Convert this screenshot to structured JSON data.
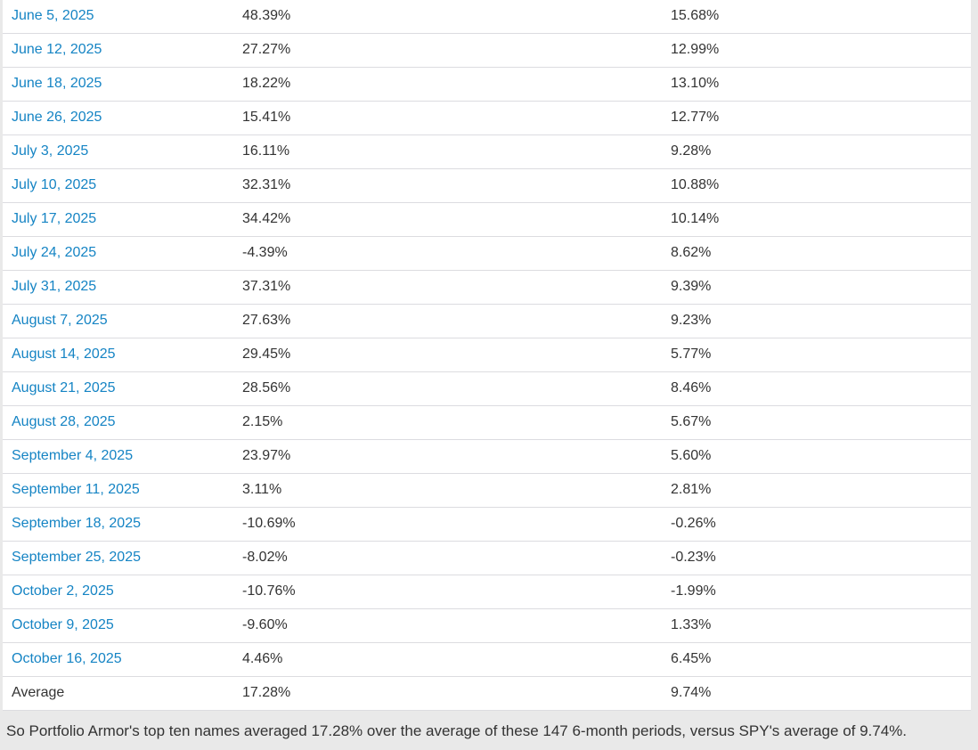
{
  "table": {
    "rows": [
      {
        "date": "June 5, 2025",
        "top_names": "48.39%",
        "spy": "15.68%"
      },
      {
        "date": "June 12, 2025",
        "top_names": "27.27%",
        "spy": "12.99%"
      },
      {
        "date": "June 18, 2025",
        "top_names": "18.22%",
        "spy": "13.10%"
      },
      {
        "date": "June 26, 2025",
        "top_names": "15.41%",
        "spy": "12.77%"
      },
      {
        "date": "July 3, 2025",
        "top_names": "16.11%",
        "spy": "9.28%"
      },
      {
        "date": "July 10, 2025",
        "top_names": "32.31%",
        "spy": "10.88%"
      },
      {
        "date": "July 17, 2025",
        "top_names": "34.42%",
        "spy": "10.14%"
      },
      {
        "date": "July 24, 2025",
        "top_names": "-4.39%",
        "spy": "8.62%"
      },
      {
        "date": "July 31, 2025",
        "top_names": "37.31%",
        "spy": "9.39%"
      },
      {
        "date": "August 7, 2025",
        "top_names": "27.63%",
        "spy": "9.23%"
      },
      {
        "date": "August 14, 2025",
        "top_names": "29.45%",
        "spy": "5.77%"
      },
      {
        "date": "August 21, 2025",
        "top_names": "28.56%",
        "spy": "8.46%"
      },
      {
        "date": "August 28, 2025",
        "top_names": "2.15%",
        "spy": "5.67%"
      },
      {
        "date": "September 4, 2025",
        "top_names": "23.97%",
        "spy": "5.60%"
      },
      {
        "date": "September 11, 2025",
        "top_names": "3.11%",
        "spy": "2.81%"
      },
      {
        "date": "September 18, 2025",
        "top_names": "-10.69%",
        "spy": "-0.26%"
      },
      {
        "date": "September 25, 2025",
        "top_names": "-8.02%",
        "spy": "-0.23%"
      },
      {
        "date": "October 2, 2025",
        "top_names": "-10.76%",
        "spy": "-1.99%"
      },
      {
        "date": "October 9, 2025",
        "top_names": "-9.60%",
        "spy": "1.33%"
      },
      {
        "date": "October 16, 2025",
        "top_names": "4.46%",
        "spy": "6.45%"
      }
    ],
    "average": {
      "label": "Average",
      "top_names": "17.28%",
      "spy": "9.74%"
    }
  },
  "summary": "So Portfolio Armor's top ten names averaged 17.28% over the average of these 147 6-month periods, versus SPY's average of 9.74%.",
  "colors": {
    "link_blue": "#1584c4",
    "text": "#333333",
    "row_border": "#dcdce0",
    "page_background": "#e9e9e9",
    "row_background": "#ffffff"
  }
}
